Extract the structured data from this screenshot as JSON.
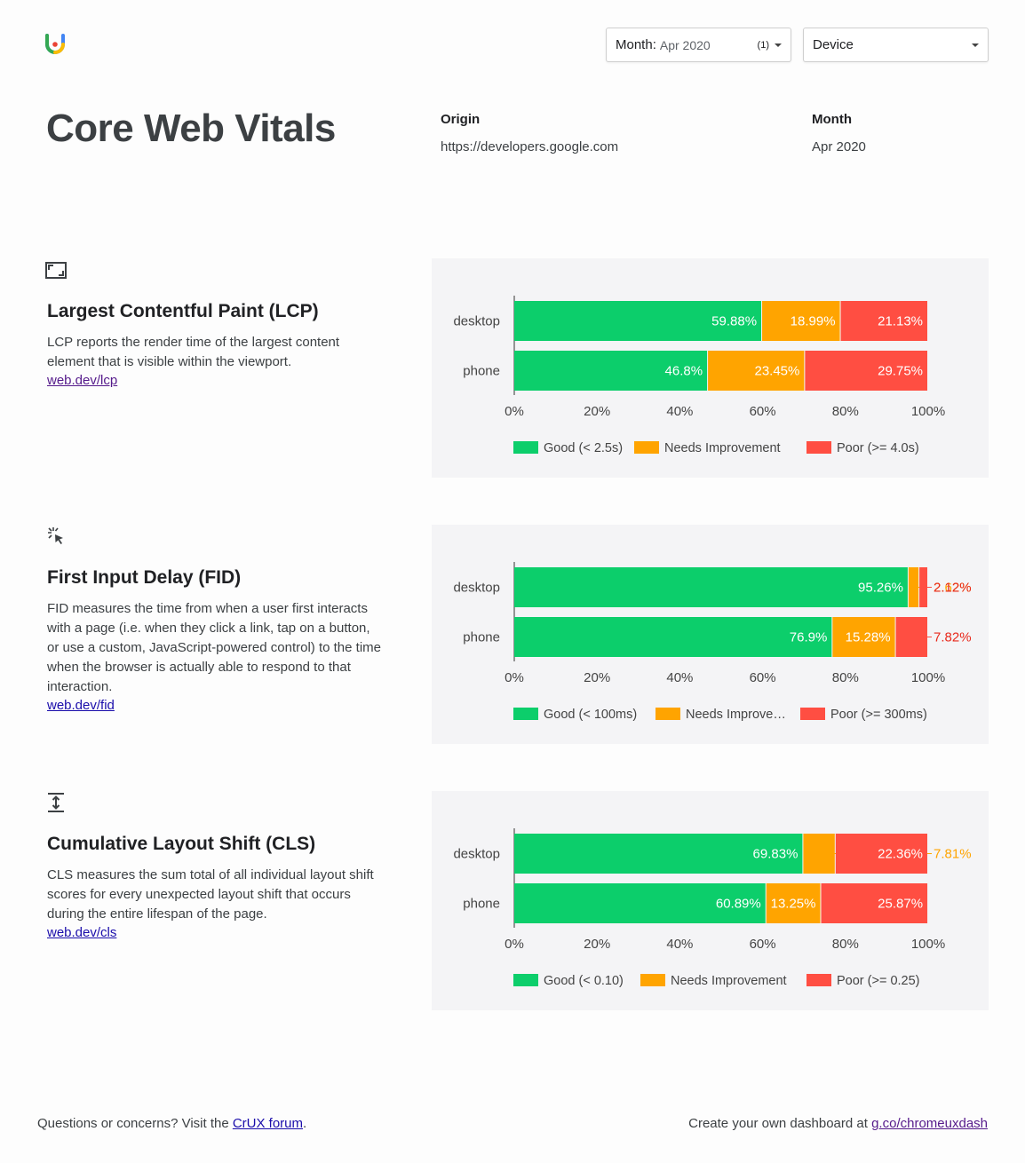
{
  "header": {
    "month_filter": {
      "label": "Month:",
      "value": "Apr 2020",
      "count": "(1)"
    },
    "device_filter": {
      "label": "Device"
    }
  },
  "page": {
    "title": "Core Web Vitals",
    "origin_label": "Origin",
    "origin_value": "https://developers.google.com",
    "month_label": "Month",
    "month_value": "Apr 2020"
  },
  "sections": [
    {
      "icon": "lcp-frame-icon",
      "title": "Largest Contentful Paint (LCP)",
      "description": "LCP reports the render time of the largest content element that is visible within the viewport.",
      "link": "web.dev/lcp"
    },
    {
      "icon": "click-cursor-icon",
      "title": "First Input Delay (FID)",
      "description": "FID measures the time from when a user first interacts with a page (i.e. when they click a link, tap on a button, or use a custom, JavaScript-powered control) to the time when the browser is actually able to respond to that interaction.",
      "link": "web.dev/fid"
    },
    {
      "icon": "vertical-shift-icon",
      "title": "Cumulative Layout Shift (CLS)",
      "description": "CLS measures the sum total of all individual layout shift scores for every unexpected layout shift that occurs during the entire lifespan of the page.",
      "link": "web.dev/cls"
    }
  ],
  "colors": {
    "good": "#0cce6b",
    "needs": "#ffa400",
    "poor": "#ff4e42",
    "panel": "#f4f4f6"
  },
  "chart_data": [
    {
      "type": "bar",
      "orientation": "horizontal-stacked",
      "categories": [
        "desktop",
        "phone"
      ],
      "series": [
        {
          "name": "Good (< 2.5s)",
          "values": [
            59.88,
            46.8
          ],
          "labels": [
            "59.88%",
            "46.8%"
          ]
        },
        {
          "name": "Needs Improvement",
          "values": [
            18.99,
            23.45
          ],
          "labels": [
            "18.99%",
            "23.45%"
          ]
        },
        {
          "name": "Poor (>= 4.0s)",
          "values": [
            21.13,
            29.75
          ],
          "labels": [
            "21.13%",
            "29.75%"
          ]
        }
      ],
      "xticks": [
        "0%",
        "20%",
        "40%",
        "60%",
        "80%",
        "100%"
      ],
      "xlim": [
        0,
        100
      ],
      "legend": "bottom"
    },
    {
      "type": "bar",
      "orientation": "horizontal-stacked",
      "categories": [
        "desktop",
        "phone"
      ],
      "series": [
        {
          "name": "Good (< 100ms)",
          "values": [
            95.26,
            76.9
          ],
          "labels": [
            "95.26%",
            "76.9%"
          ]
        },
        {
          "name": "Needs Improve…",
          "values": [
            2.62,
            15.28
          ],
          "labels": [
            "2.62%",
            "15.28%"
          ]
        },
        {
          "name": "Poor (>= 300ms)",
          "values": [
            2.12,
            7.82
          ],
          "labels": [
            "2.12%",
            "7.82%"
          ]
        }
      ],
      "xticks": [
        "0%",
        "20%",
        "40%",
        "60%",
        "80%",
        "100%"
      ],
      "xlim": [
        0,
        100
      ],
      "legend": "bottom"
    },
    {
      "type": "bar",
      "orientation": "horizontal-stacked",
      "categories": [
        "desktop",
        "phone"
      ],
      "series": [
        {
          "name": "Good (< 0.10)",
          "values": [
            69.83,
            60.89
          ],
          "labels": [
            "69.83%",
            "60.89%"
          ]
        },
        {
          "name": "Needs Improvement",
          "values": [
            7.81,
            13.25
          ],
          "labels": [
            "7.81%",
            "13.25%"
          ]
        },
        {
          "name": "Poor (>= 0.25)",
          "values": [
            22.36,
            25.87
          ],
          "labels": [
            "22.36%",
            "25.87%"
          ]
        }
      ],
      "xticks": [
        "0%",
        "20%",
        "40%",
        "60%",
        "80%",
        "100%"
      ],
      "xlim": [
        0,
        100
      ],
      "legend": "bottom"
    }
  ],
  "footer": {
    "left_text": "Questions or concerns? Visit the ",
    "left_link": "CrUX forum",
    "left_end": ".",
    "right_text": "Create your own dashboard at ",
    "right_link": "g.co/chromeuxdash"
  }
}
